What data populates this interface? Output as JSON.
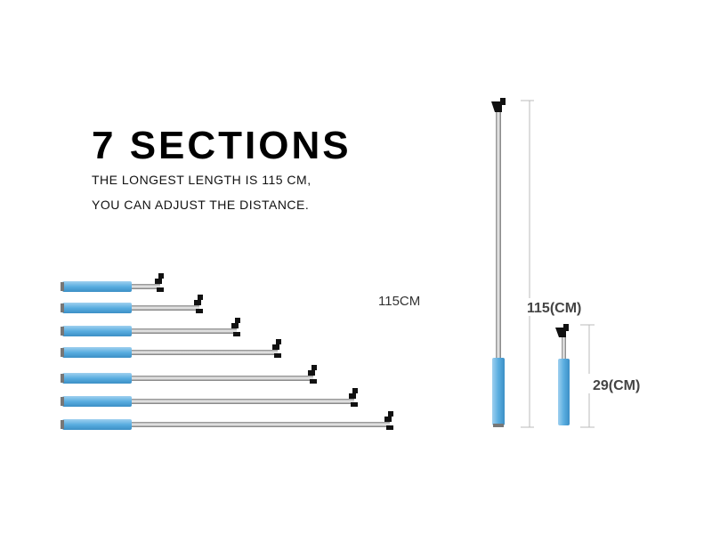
{
  "header": {
    "title": "7 SECTIONS",
    "lines": [
      "THE LONGEST LENGTH IS 115 CM,",
      "YOU CAN ADJUST THE DISTANCE."
    ]
  },
  "labels": {
    "sections_length": "115CM",
    "extended": "115(CM)",
    "folded": "29(CM)"
  }
}
